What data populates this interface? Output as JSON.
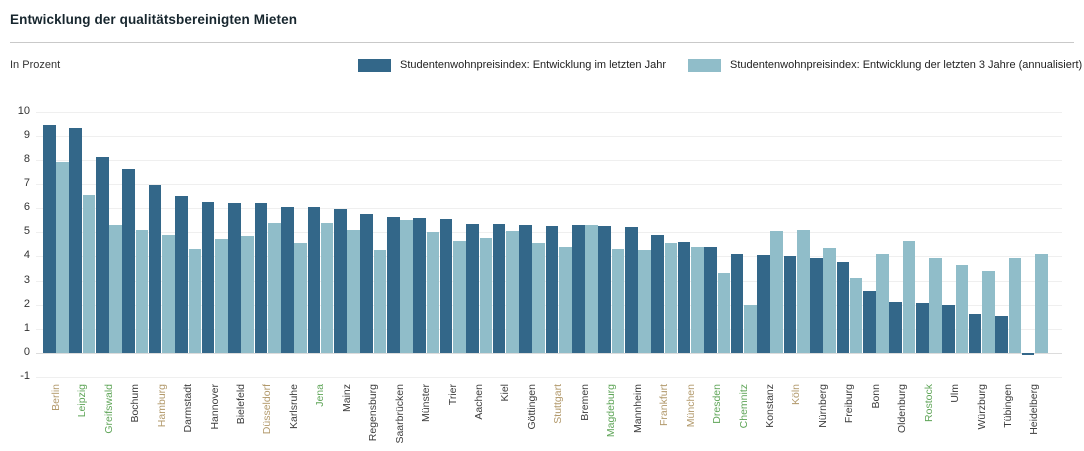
{
  "header": {
    "title": "Entwicklung der qualitätsbereinigten Mieten"
  },
  "units_label": "In Prozent",
  "legend": [
    {
      "label": "Studentenwohnpreisindex: Entwicklung im letzten Jahr",
      "color": "#336789"
    },
    {
      "label": "Studentenwohnpreisindex: Entwicklung der letzten 3 Jahre (annualisiert)",
      "color": "#90bdc9"
    }
  ],
  "chart_data": {
    "type": "bar",
    "title": "Entwicklung der qualitätsbereinigten Mieten",
    "ylabel": "In Prozent",
    "ylim": [
      -1,
      10
    ],
    "yticks": [
      -1,
      0,
      1,
      2,
      3,
      4,
      5,
      6,
      7,
      8,
      9,
      10
    ],
    "grid": true,
    "legend_position": "top",
    "categories": [
      "Berlin",
      "Leipzig",
      "Greifswald",
      "Bochum",
      "Hamburg",
      "Darmstadt",
      "Hannover",
      "Bielefeld",
      "Düsseldorf",
      "Karlsruhe",
      "Jena",
      "Mainz",
      "Regensburg",
      "Saarbrücken",
      "Münster",
      "Trier",
      "Aachen",
      "Kiel",
      "Göttingen",
      "Stuttgart",
      "Bremen",
      "Magdeburg",
      "Mannheim",
      "Frankfurt",
      "München",
      "Dresden",
      "Chemnitz",
      "Konstanz",
      "Köln",
      "Nürnberg",
      "Freiburg",
      "Bonn",
      "Oldenburg",
      "Rostock",
      "Ulm",
      "Würzburg",
      "Tübingen",
      "Heidelberg"
    ],
    "series": [
      {
        "name": "Studentenwohnpreisindex: Entwicklung im letzten Jahr",
        "color": "#336789",
        "values": [
          9.45,
          9.3,
          8.1,
          7.6,
          6.95,
          6.5,
          6.25,
          6.2,
          6.2,
          6.05,
          6.05,
          5.95,
          5.75,
          5.65,
          5.6,
          5.55,
          5.35,
          5.35,
          5.3,
          5.25,
          5.3,
          5.25,
          5.2,
          4.9,
          4.6,
          4.4,
          4.1,
          4.05,
          4.0,
          3.95,
          3.75,
          2.55,
          2.1,
          2.05,
          2.0,
          1.6,
          1.55,
          -0.1
        ]
      },
      {
        "name": "Studentenwohnpreisindex: Entwicklung der letzten 3 Jahre (annualisiert)",
        "color": "#90bdc9",
        "values": [
          7.9,
          6.55,
          5.3,
          5.1,
          4.9,
          4.3,
          4.7,
          4.85,
          5.4,
          4.55,
          5.4,
          5.1,
          4.25,
          5.5,
          5.0,
          4.65,
          4.75,
          5.05,
          4.55,
          4.4,
          5.3,
          4.3,
          4.25,
          4.55,
          4.4,
          3.3,
          2.0,
          5.05,
          5.1,
          4.35,
          3.1,
          4.1,
          4.65,
          3.95,
          3.65,
          3.4,
          3.95,
          4.1
        ]
      }
    ],
    "category_groups": [
      "big7",
      "east",
      "east",
      "default",
      "big7",
      "default",
      "default",
      "default",
      "big7",
      "default",
      "east",
      "default",
      "default",
      "default",
      "default",
      "default",
      "default",
      "default",
      "default",
      "big7",
      "default",
      "east",
      "default",
      "big7",
      "big7",
      "east",
      "east",
      "default",
      "big7",
      "default",
      "default",
      "default",
      "default",
      "east",
      "default",
      "default",
      "default",
      "default"
    ],
    "category_label_colors": {
      "default": "#3d3d3d",
      "big7": "#b2996b",
      "east": "#5fa558"
    }
  }
}
